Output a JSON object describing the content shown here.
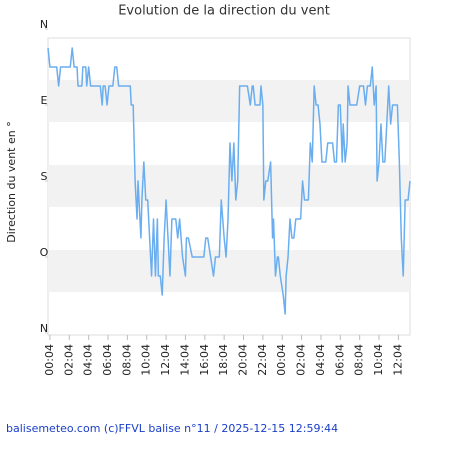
{
  "chart_data": {
    "type": "line",
    "title": "Evolution de la direction du vent",
    "y_label": "Direction du vent en °",
    "footer": "balisemeteo.com (c)FFVL balise n°11 / 2025-12-15 12:59:44",
    "x": [
      -0.2,
      0,
      0.7,
      0.9,
      1.1,
      2.1,
      2.3,
      2.5,
      2.8,
      2.9,
      3.3,
      3.4,
      3.7,
      3.8,
      4.0,
      4.2,
      5.2,
      5.4,
      5.5,
      5.7,
      5.9,
      6.1,
      6.5,
      6.7,
      6.9,
      7.1,
      8.3,
      8.4,
      8.6,
      8.8,
      9.0,
      9.1,
      9.4,
      9.5,
      9.7,
      9.9,
      10.1,
      10.3,
      10.5,
      10.7,
      10.9,
      11.1,
      11.2,
      11.4,
      11.6,
      11.8,
      12.0,
      12.2,
      12.4,
      12.6,
      13.0,
      13.2,
      13.4,
      13.7,
      14.0,
      14.1,
      14.3,
      14.7,
      15.9,
      16.1,
      16.3,
      16.6,
      16.9,
      17.1,
      17.5,
      17.7,
      18.0,
      18.2,
      18.4,
      18.6,
      18.8,
      19.0,
      19.2,
      19.4,
      19.6,
      20.4,
      20.7,
      20.9,
      21.0,
      21.2,
      21.7,
      21.8,
      22.0,
      22.1,
      22.3,
      22.5,
      22.8,
      23.0,
      23.1,
      23.3,
      23.5,
      23.6,
      23.8,
      24.1,
      24.3,
      24.4,
      24.6,
      24.8,
      25.0,
      25.2,
      25.4,
      25.9,
      26.1,
      26.3,
      26.7,
      26.9,
      27.1,
      27.3,
      27.5,
      27.7,
      27.9,
      28.1,
      28.5,
      28.7,
      29.2,
      29.4,
      29.6,
      29.8,
      30.0,
      30.2,
      30.3,
      30.5,
      30.7,
      30.8,
      31.0,
      31.7,
      32.0,
      32.4,
      32.6,
      32.8,
      33.1,
      33.3,
      33.5,
      33.7,
      33.8,
      34.0,
      34.2,
      34.4,
      34.6,
      34.8,
      35.0,
      35.2,
      35.4,
      35.9,
      36.1,
      36.3,
      36.5,
      36.7,
      37.0,
      37.2
    ],
    "series": [
      {
        "name": "Direction",
        "color": "#6aaef0",
        "values": [
          22.5,
          45,
          45,
          67.5,
          45,
          45,
          22.5,
          45,
          45,
          67.5,
          67.5,
          45,
          45,
          67.5,
          45,
          67.5,
          67.5,
          90,
          67.5,
          67.5,
          90,
          67.5,
          67.5,
          45,
          45,
          67.5,
          67.5,
          90,
          90,
          180,
          225,
          180,
          247.5,
          202.5,
          157.5,
          202.5,
          202.5,
          247.5,
          292.5,
          225,
          292.5,
          225,
          292.5,
          292.5,
          315,
          247.5,
          202.5,
          247.5,
          292.5,
          225,
          225,
          247.5,
          225,
          270,
          292.5,
          247.5,
          247.5,
          270,
          270,
          247.5,
          247.5,
          270,
          292.5,
          270,
          270,
          202.5,
          247.5,
          270,
          225,
          135,
          180,
          135,
          202.5,
          180,
          67.5,
          67.5,
          90,
          67.5,
          67.5,
          90,
          90,
          67.5,
          90,
          202.5,
          180,
          180,
          157.5,
          247.5,
          225,
          292.5,
          270,
          270,
          292.5,
          315,
          337.5,
          292.5,
          270,
          225,
          247.5,
          247.5,
          225,
          225,
          180,
          202.5,
          202.5,
          135,
          157.5,
          67.5,
          90,
          90,
          112.5,
          157.5,
          157.5,
          135,
          135,
          157.5,
          157.5,
          90,
          90,
          157.5,
          112.5,
          157.5,
          135,
          67.5,
          90,
          90,
          67.5,
          67.5,
          90,
          67.5,
          67.5,
          45,
          90,
          67.5,
          180,
          157.5,
          112.5,
          157.5,
          157.5,
          112.5,
          67.5,
          112.5,
          90,
          90,
          157.5,
          247.5,
          292.5,
          202.5,
          202.5,
          180
        ]
      }
    ],
    "xlim": [
      -0.2,
      37.2
    ],
    "xticks": [
      {
        "value": 0,
        "label": "00:04"
      },
      {
        "value": 2,
        "label": "02:04"
      },
      {
        "value": 4,
        "label": "04:04"
      },
      {
        "value": 6,
        "label": "06:04"
      },
      {
        "value": 8,
        "label": "08:04"
      },
      {
        "value": 10,
        "label": "10:04"
      },
      {
        "value": 12,
        "label": "12:04"
      },
      {
        "value": 14,
        "label": "14:04"
      },
      {
        "value": 16,
        "label": "16:04"
      },
      {
        "value": 18,
        "label": "18:04"
      },
      {
        "value": 20,
        "label": "20:04"
      },
      {
        "value": 22,
        "label": "22:04"
      },
      {
        "value": 24,
        "label": "00:04"
      },
      {
        "value": 26,
        "label": "02:04"
      },
      {
        "value": 28,
        "label": "04:04"
      },
      {
        "value": 30,
        "label": "06:04"
      },
      {
        "value": 32,
        "label": "08:04"
      },
      {
        "value": 34,
        "label": "10:04"
      },
      {
        "value": 36,
        "label": "12:04"
      }
    ],
    "ylim": [
      360,
      0
    ],
    "yticks": [
      {
        "value": 0,
        "label": "N"
      },
      {
        "value": 90,
        "label": "E"
      },
      {
        "value": 180,
        "label": "S"
      },
      {
        "value": 270,
        "label": "O"
      },
      {
        "value": 360,
        "label": "N"
      }
    ]
  }
}
